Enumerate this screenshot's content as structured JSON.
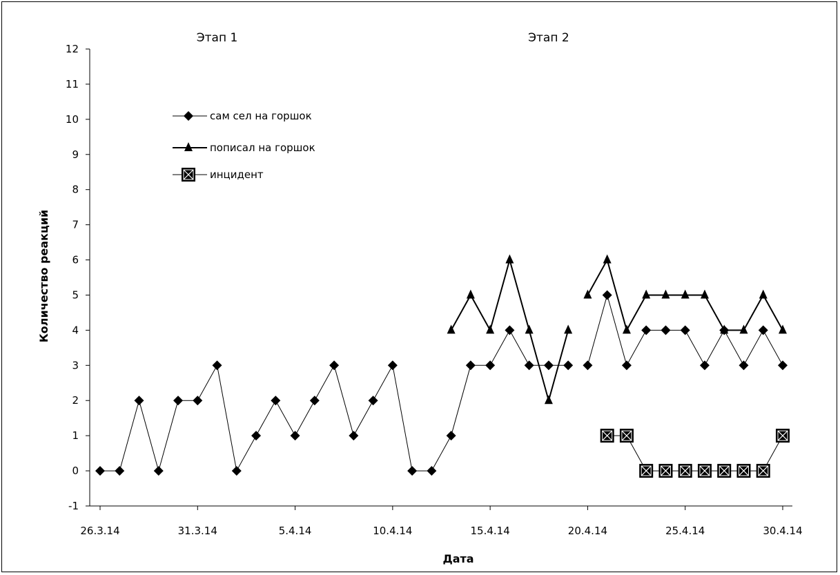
{
  "chart_data": {
    "type": "line",
    "title": "",
    "xlabel": "Дата",
    "ylabel": "Количество реакций",
    "ylim": [
      -1,
      12
    ],
    "yticks": [
      -1,
      0,
      1,
      2,
      3,
      4,
      5,
      6,
      7,
      8,
      9,
      10,
      11,
      12
    ],
    "xrange": [
      "2014-03-26",
      "2014-04-30"
    ],
    "xtick_labels": [
      "26.3.14",
      "31.3.14",
      "5.4.14",
      "10.4.14",
      "15.4.14",
      "20.4.14",
      "25.4.14",
      "30.4.14"
    ],
    "xtick_dates": [
      "2014-03-26",
      "2014-03-31",
      "2014-04-05",
      "2014-04-10",
      "2014-04-15",
      "2014-04-20",
      "2014-04-25",
      "2014-04-30"
    ],
    "phase_labels": [
      {
        "label": "Этап 1",
        "x": "2014-04-01"
      },
      {
        "label": "Этап 2",
        "x": "2014-04-18"
      }
    ],
    "grid": false,
    "legend_position": "top-left",
    "series": [
      {
        "name": "сам сел на горшок",
        "marker": "diamond",
        "segments": [
          {
            "x": [
              "2014-03-26",
              "2014-03-27",
              "2014-03-28",
              "2014-03-29",
              "2014-03-30",
              "2014-03-31",
              "2014-04-01",
              "2014-04-02",
              "2014-04-03",
              "2014-04-04",
              "2014-04-05",
              "2014-04-06",
              "2014-04-07",
              "2014-04-08",
              "2014-04-09",
              "2014-04-10",
              "2014-04-11",
              "2014-04-12",
              "2014-04-13",
              "2014-04-14",
              "2014-04-15",
              "2014-04-16",
              "2014-04-17",
              "2014-04-18",
              "2014-04-19"
            ],
            "y": [
              0,
              0,
              2,
              0,
              2,
              2,
              3,
              0,
              1,
              2,
              1,
              2,
              3,
              1,
              2,
              3,
              0,
              0,
              1,
              3,
              3,
              4,
              3,
              3,
              3
            ]
          },
          {
            "x": [
              "2014-04-20",
              "2014-04-21",
              "2014-04-22",
              "2014-04-23",
              "2014-04-24",
              "2014-04-25",
              "2014-04-26",
              "2014-04-27",
              "2014-04-28",
              "2014-04-29",
              "2014-04-30"
            ],
            "y": [
              3,
              5,
              3,
              4,
              4,
              4,
              3,
              4,
              3,
              4,
              3
            ]
          }
        ]
      },
      {
        "name": "пописал на горшок",
        "marker": "triangle",
        "segments": [
          {
            "x": [
              "2014-04-13",
              "2014-04-14",
              "2014-04-15",
              "2014-04-16",
              "2014-04-17",
              "2014-04-18",
              "2014-04-19"
            ],
            "y": [
              4,
              5,
              4,
              6,
              4,
              2,
              4
            ]
          },
          {
            "x": [
              "2014-04-20",
              "2014-04-21",
              "2014-04-22",
              "2014-04-23",
              "2014-04-24",
              "2014-04-25",
              "2014-04-26",
              "2014-04-27",
              "2014-04-28",
              "2014-04-29",
              "2014-04-30"
            ],
            "y": [
              5,
              6,
              4,
              5,
              5,
              5,
              5,
              4,
              4,
              5,
              4
            ]
          }
        ]
      },
      {
        "name": "инцидент",
        "marker": "x-square",
        "segments": [
          {
            "x": [
              "2014-04-21",
              "2014-04-22",
              "2014-04-23",
              "2014-04-24",
              "2014-04-25",
              "2014-04-26",
              "2014-04-27",
              "2014-04-28",
              "2014-04-29",
              "2014-04-30"
            ],
            "y": [
              1,
              1,
              0,
              0,
              0,
              0,
              0,
              0,
              0,
              1
            ]
          }
        ]
      }
    ]
  }
}
